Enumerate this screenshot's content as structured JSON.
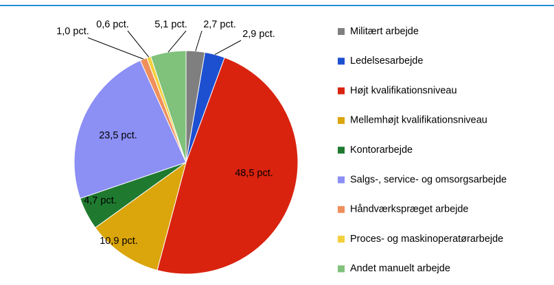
{
  "chart_data": {
    "type": "pie",
    "categories": [
      "Militært arbejde",
      "Ledelsesarbejde",
      "Højt kvalifikationsniveau",
      "Mellemhøjt kvalifikationsniveau",
      "Kontorarbejde",
      "Salgs-, service- og omsorgsarbejde",
      "Håndværkspræget arbejde",
      "Proces- og maskinoperatørarbejde",
      "Andet manuelt arbejde"
    ],
    "values": [
      2.7,
      2.9,
      48.5,
      10.9,
      4.7,
      23.5,
      1.0,
      0.6,
      5.1
    ],
    "value_labels": [
      "2,7 pct.",
      "2,9 pct.",
      "48,5 pct.",
      "10,9 pct.",
      "4,7 pct.",
      "23,5 pct.",
      "1,0 pct.",
      "0,6 pct.",
      "5,1 pct."
    ],
    "colors": [
      "#7f7f7f",
      "#1d4fd1",
      "#d9230f",
      "#dba50c",
      "#1f7a30",
      "#8c8ff4",
      "#ef8f5c",
      "#f3d03c",
      "#80c27b"
    ],
    "legend": "right"
  }
}
